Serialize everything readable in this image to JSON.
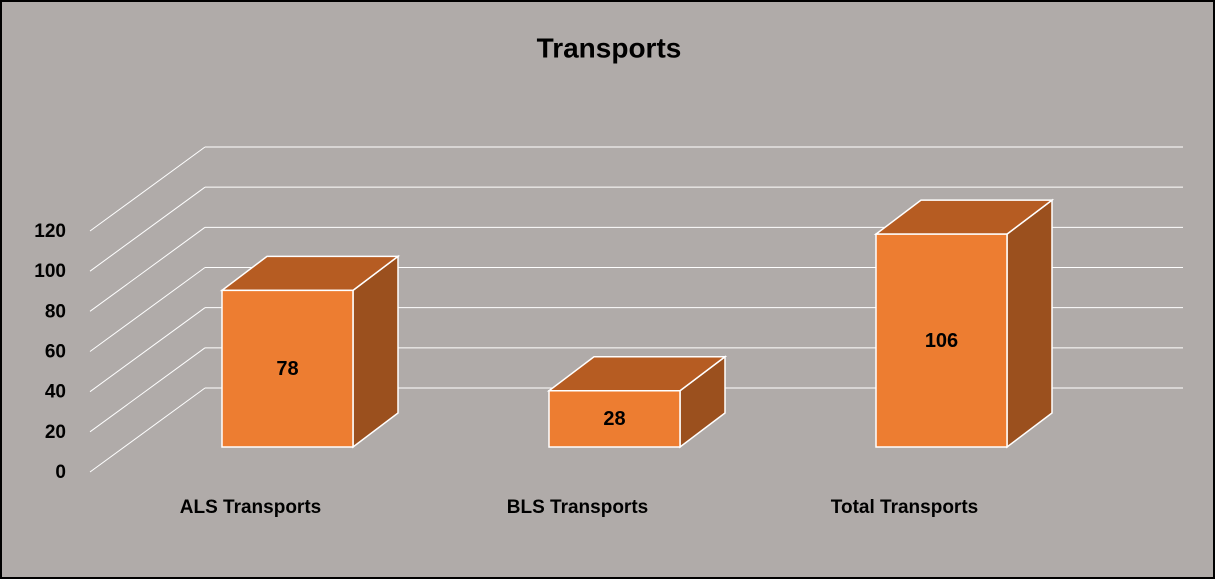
{
  "chart_data": {
    "type": "bar",
    "title": "Transports",
    "categories": [
      "ALS Transports",
      "BLS Transports",
      "Total Transports"
    ],
    "values": [
      78,
      28,
      106
    ],
    "color": "#ed7d31",
    "ylim": [
      0,
      120
    ],
    "yticks": [
      0,
      20,
      40,
      60,
      80,
      100,
      120
    ],
    "grid": true
  }
}
